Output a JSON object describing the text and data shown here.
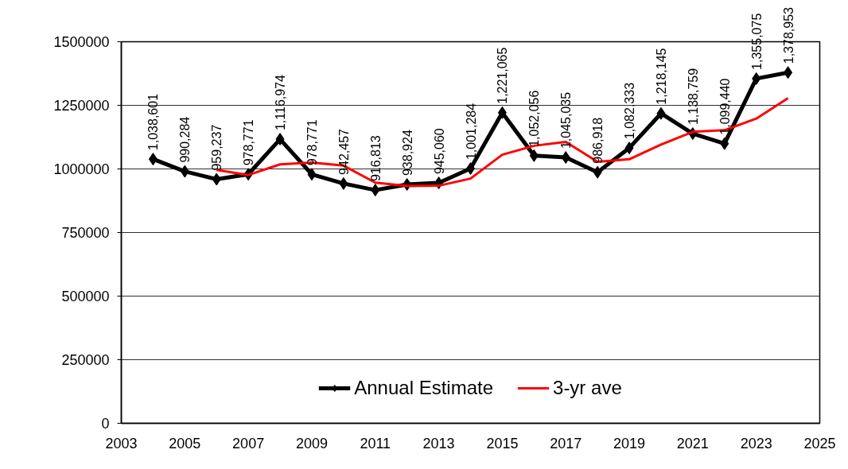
{
  "chart_data": {
    "type": "line",
    "x": [
      2004,
      2005,
      2006,
      2007,
      2008,
      2009,
      2010,
      2011,
      2012,
      2013,
      2014,
      2015,
      2016,
      2017,
      2018,
      2019,
      2020,
      2021,
      2022,
      2023,
      2024
    ],
    "series": [
      {
        "name": "Annual Estimate",
        "color": "#000000",
        "marker": "diamond",
        "values": [
          1038601,
          990284,
          959237,
          978771,
          1116974,
          978771,
          942457,
          916813,
          938924,
          945060,
          1001284,
          1221065,
          1052056,
          1045035,
          986918,
          1082333,
          1218145,
          1138759,
          1099440,
          1355075,
          1378953
        ],
        "value_labels": [
          "1,038,601",
          "990,284",
          "959,237",
          "978,771",
          "1,116,974",
          "978,771",
          "942,457",
          "916,813",
          "938,924",
          "945,060",
          "1,001,284",
          "1,221,065",
          "1,052,056",
          "1,045,035",
          "986,918",
          "1,082,333",
          "1,218,145",
          "1,138,759",
          "1,099,440",
          "1,355,075",
          "1,378,953"
        ]
      },
      {
        "name": "3-yr ave",
        "color": "#ff0000",
        "marker": "none",
        "x": [
          2006,
          2007,
          2008,
          2009,
          2010,
          2011,
          2012,
          2013,
          2014,
          2015,
          2016,
          2017,
          2018,
          2019,
          2020,
          2021,
          2022,
          2023,
          2024
        ],
        "values": [
          996000,
          976000,
          1018000,
          1025000,
          1013000,
          946000,
          933000,
          934000,
          962000,
          1056000,
          1091000,
          1106000,
          1028000,
          1038000,
          1096000,
          1146000,
          1152000,
          1198000,
          1278000
        ]
      }
    ],
    "xlim": [
      2003,
      2025
    ],
    "xticks": [
      2003,
      2005,
      2007,
      2009,
      2011,
      2013,
      2015,
      2017,
      2019,
      2021,
      2023,
      2025
    ],
    "ylim": [
      0,
      1500000
    ],
    "yticks": [
      0,
      250000,
      500000,
      750000,
      1000000,
      1250000,
      1500000
    ],
    "grid": "y",
    "legend": "bottom"
  }
}
